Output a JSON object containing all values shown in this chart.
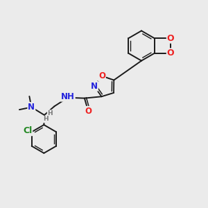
{
  "bg_color": "#ebebeb",
  "bond_color": "#1a1a1a",
  "atom_colors": {
    "O": "#ee2222",
    "N": "#2222dd",
    "Cl": "#228822",
    "H": "#777777",
    "C": "#1a1a1a"
  },
  "font_size": 8.0
}
